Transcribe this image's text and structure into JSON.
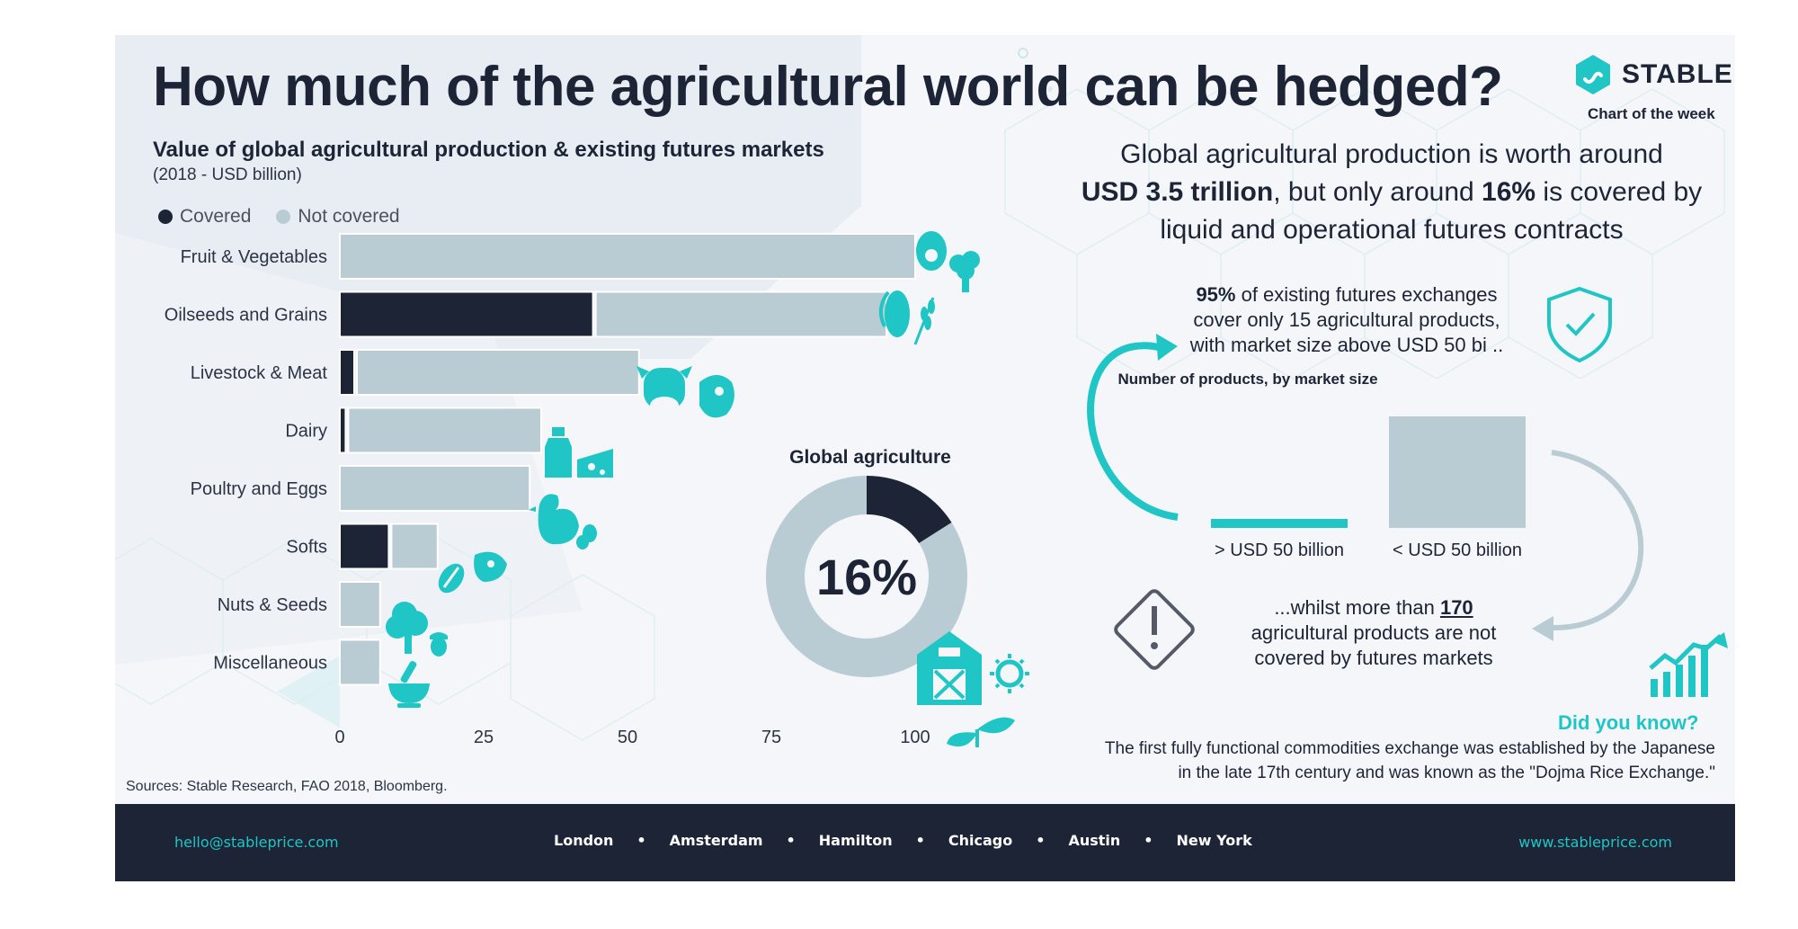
{
  "title": "How much of the agricultural world can be hedged?",
  "brand": {
    "name": "STABLE",
    "tagline": "Chart of the week"
  },
  "colors": {
    "covered": "#1c2436",
    "not_covered": "#b9ccd4",
    "accent": "#20c5c5",
    "text": "#1c2436",
    "footer_bg": "#1c2436"
  },
  "chart_data": [
    {
      "type": "bar",
      "orientation": "horizontal",
      "stacked": true,
      "title": "Value of global agricultural production & existing futures markets",
      "subtitle": "(2018 - USD billion)",
      "categories": [
        "Fruit & Vegetables",
        "Oilseeds and Grains",
        "Livestock & Meat",
        "Dairy",
        "Poultry and Eggs",
        "Softs",
        "Nuts & Seeds",
        "Miscellaneous"
      ],
      "series": [
        {
          "name": "Covered",
          "values": [
            0,
            44,
            2.5,
            1,
            0,
            8.5,
            0,
            0
          ]
        },
        {
          "name": "Not covered",
          "values": [
            100,
            51,
            49.5,
            34,
            33,
            8.5,
            7,
            7
          ]
        }
      ],
      "x_ticks": [
        "0",
        "25",
        "50",
        "75",
        "100"
      ],
      "xlim": [
        0,
        100
      ],
      "legend_position": "top-left",
      "grid": false
    },
    {
      "type": "pie",
      "donut": true,
      "title": "Global agriculture",
      "center_label": "16%",
      "slices": [
        {
          "label": "Covered",
          "value": 16
        },
        {
          "label": "Not covered",
          "value": 84
        }
      ]
    },
    {
      "type": "bar",
      "title": "Number of products, by market size",
      "categories": [
        "> USD 50 billion",
        "< USD 50 billion"
      ],
      "values": [
        15,
        170
      ]
    }
  ],
  "headline": {
    "line1": "Global agricultural production is worth around",
    "value1": "USD 3.5 trillion",
    "mid": ", but only around ",
    "value2": "16%",
    "line2_end": " is covered by",
    "line3": "liquid and operational futures contracts"
  },
  "fact95": {
    "percent": "95%",
    "rest1": " of existing futures exchanges",
    "line2": "cover only 15 agricultural products,",
    "line3": "with market size above USD 50 bi .."
  },
  "whilst": {
    "pre": "...whilst more than ",
    "count": "170",
    "line2": "agricultural products are not",
    "line3": "covered by futures markets"
  },
  "did_you_know": {
    "heading": "Did you know?",
    "line1": "The first fully functional commodities exchange was established by the Japanese",
    "line2": "in the late 17th century and was known as the \"Dojma Rice Exchange.\""
  },
  "sources": "Sources:  Stable Research, FAO 2018, Bloomberg.",
  "footer": {
    "email": "hello@stableprice.com",
    "website": "www.stableprice.com",
    "cities": [
      "London",
      "Amsterdam",
      "Hamilton",
      "Chicago",
      "Austin",
      "New York"
    ],
    "separator": "•"
  },
  "icons": [
    "avocado-broccoli-icon",
    "corn-wheat-icon",
    "cow-meat-icon",
    "milk-cheese-icon",
    "chicken-egg-icon",
    "coffee-bean-icon",
    "tree-acorn-icon",
    "mortar-bowl-icon",
    "barn-icon",
    "sun-icon",
    "sprout-icon",
    "shield-check-icon",
    "warning-diamond-icon",
    "growth-chart-icon"
  ]
}
